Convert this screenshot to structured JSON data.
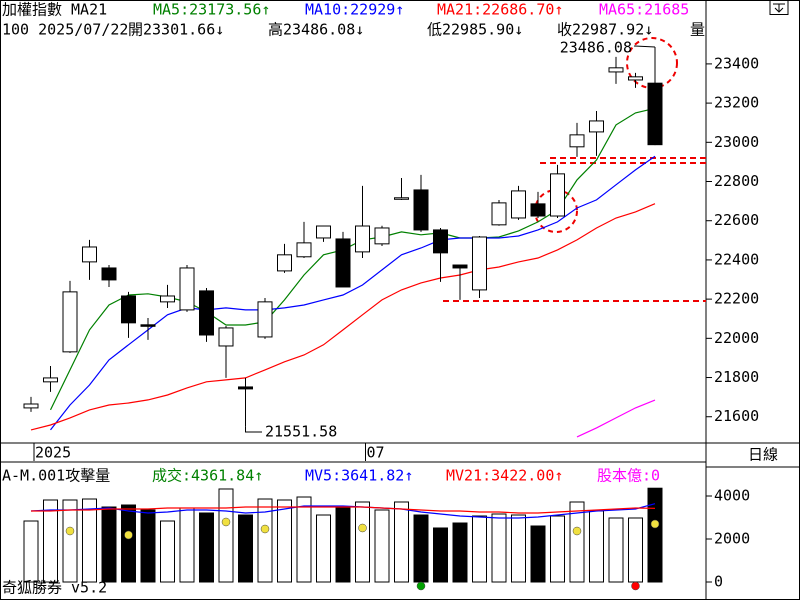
{
  "chart_data": [
    {
      "type": "candlestick",
      "header": [
        {
          "text": "加權指數 MA21",
          "color": "#000000"
        }
      ],
      "info": [
        "100 2025/07/22",
        "開23301.66↓",
        "高23486.08↓",
        "低22985.90↓",
        "收22987.92↓",
        "量"
      ],
      "period": "日線",
      "categories": [
        "2025",
        null,
        null,
        null,
        null,
        null,
        null,
        null,
        null,
        null,
        null,
        null,
        null,
        null,
        null,
        null,
        null,
        "07",
        null,
        null,
        null,
        null,
        null,
        null,
        null,
        null,
        null,
        null,
        null,
        null,
        null,
        null,
        null
      ],
      "open": [
        21645,
        21778,
        21931,
        22390,
        22359,
        22216,
        22069,
        22186,
        22145,
        22242,
        21961,
        21752,
        22007,
        22344,
        22416,
        22512,
        22507,
        22441,
        22482,
        22712,
        22757,
        22553,
        22374,
        22247,
        22579,
        22614,
        22686,
        22624,
        22977,
        23053,
        23359,
        23318,
        23301.66
      ],
      "high": [
        21701,
        21859,
        22293,
        22502,
        22374,
        22237,
        22104,
        22273,
        22374,
        22257,
        22063,
        21798,
        22206,
        22482,
        22594,
        22574,
        22543,
        22778,
        22574,
        22818,
        22834,
        22563,
        22369,
        22522,
        22706,
        22778,
        22747,
        22885,
        23099,
        23160,
        23436,
        23354,
        23486.08
      ],
      "low": [
        21625,
        21727,
        21926,
        22298,
        22262,
        22002,
        21992,
        22155,
        22135,
        21982,
        21798,
        21551.58,
        21997,
        22334,
        22410,
        22492,
        22262,
        22410,
        22471,
        22706,
        22543,
        22288,
        22196,
        22206,
        22574,
        22604,
        22614,
        22614,
        22926,
        22931,
        23298,
        23278,
        22985.9
      ],
      "close": [
        21665,
        21798,
        22237,
        22466,
        22298,
        22079,
        22064,
        22216,
        22359,
        22017,
        22053,
        21742,
        22186,
        22426,
        22487,
        22573,
        22262,
        22573,
        22563,
        22717,
        22553,
        22436,
        22359,
        22517,
        22691,
        22752,
        22624,
        22839,
        23038,
        23109,
        23380,
        23334,
        22987.92
      ],
      "up_color": "#ffffff",
      "down_color": "#000000",
      "series": [
        {
          "name": "MA5:23173.56↑",
          "color": "#008000",
          "values": [
            null,
            21635,
            21839,
            22043,
            22170,
            22221,
            22227,
            22211,
            22186,
            22135,
            22068,
            22068,
            22084,
            22196,
            22323,
            22426,
            22451,
            22502,
            22517,
            22543,
            22528,
            22538,
            22512,
            22512,
            22517,
            22548,
            22594,
            22655,
            22808,
            22910,
            23089,
            23150,
            23173.56
          ]
        },
        {
          "name": "MA10:22929↑",
          "color": "#0000ff",
          "values": [
            null,
            21533,
            21660,
            21762,
            21890,
            21967,
            22043,
            22120,
            22155,
            22145,
            22155,
            22145,
            22145,
            22155,
            22170,
            22196,
            22221,
            22272,
            22349,
            22426,
            22461,
            22502,
            22512,
            22512,
            22512,
            22522,
            22553,
            22594,
            22665,
            22706,
            22783,
            22859,
            22929
          ]
        },
        {
          "name": "MA21:22686.70↑",
          "color": "#ff0000",
          "values": [
            21533,
            21558,
            21594,
            21635,
            21660,
            21670,
            21686,
            21711,
            21747,
            21778,
            21788,
            21798,
            21839,
            21880,
            21915,
            21967,
            22043,
            22120,
            22196,
            22247,
            22283,
            22308,
            22323,
            22349,
            22364,
            22390,
            22410,
            22451,
            22502,
            22563,
            22614,
            22645,
            22686.7
          ]
        },
        {
          "name": "MA65:21685",
          "color": "#ff00ff",
          "values": [
            null,
            null,
            null,
            null,
            null,
            null,
            null,
            null,
            null,
            null,
            null,
            null,
            null,
            null,
            null,
            null,
            null,
            null,
            null,
            null,
            null,
            null,
            null,
            null,
            null,
            null,
            null,
            null,
            21497,
            21543,
            21594,
            21645,
            21685
          ]
        }
      ],
      "annotations": [
        {
          "text": "23486.08",
          "value": 23486.08
        },
        {
          "text": "21551.58",
          "value": 21551.58
        }
      ],
      "ylim": [
        21466,
        23726
      ],
      "yticks": [
        21600,
        21800,
        22000,
        22200,
        22400,
        22600,
        22800,
        23000,
        23200,
        23400
      ]
    },
    {
      "type": "bar",
      "header": [
        {
          "text": "A-M.001攻擊量",
          "color": "#000000"
        },
        {
          "text": "成交:4361.84↑",
          "color": "#008000"
        },
        {
          "text": "MV5:3641.82↑",
          "color": "#0000ff"
        },
        {
          "text": "MV21:3422.00↑",
          "color": "#ff0000"
        },
        {
          "text": "股本億:0",
          "color": "#ff00ff"
        }
      ],
      "values": [
        2837,
        3814,
        3814,
        3860,
        3488,
        3581,
        3349,
        2837,
        3442,
        3209,
        4326,
        3116,
        3860,
        3814,
        3953,
        3116,
        3442,
        3721,
        3349,
        3721,
        3116,
        2512,
        2744,
        3070,
        3163,
        3116,
        2605,
        3070,
        3721,
        3302,
        2977,
        2977,
        4361.84
      ],
      "series": [
        {
          "color": "#0000ff",
          "values": [
            3302,
            3349,
            3349,
            3395,
            3442,
            3302,
            3209,
            3256,
            3349,
            3349,
            3302,
            3209,
            3256,
            3395,
            3535,
            3535,
            3535,
            3488,
            3442,
            3395,
            3256,
            3163,
            3070,
            3023,
            2977,
            2977,
            3023,
            3116,
            3209,
            3302,
            3349,
            3395,
            3641.82
          ]
        },
        {
          "color": "#ff0000",
          "values": [
            3302,
            3302,
            3349,
            3349,
            3395,
            3395,
            3395,
            3442,
            3442,
            3442,
            3442,
            3488,
            3488,
            3488,
            3488,
            3488,
            3488,
            3488,
            3442,
            3395,
            3349,
            3302,
            3302,
            3256,
            3256,
            3209,
            3209,
            3256,
            3302,
            3349,
            3395,
            3442,
            3422.0
          ]
        }
      ],
      "dots": [
        {
          "color": "#f0e040",
          "values": [
            null,
            null,
            2372,
            null,
            null,
            2186,
            null,
            null,
            null,
            null,
            2791,
            null,
            2465,
            null,
            null,
            null,
            null,
            2512,
            null,
            null,
            null,
            null,
            null,
            null,
            null,
            null,
            null,
            null,
            2372,
            null,
            null,
            null,
            2698
          ]
        },
        {
          "color": "#00a000",
          "values": [
            null,
            null,
            null,
            null,
            null,
            null,
            null,
            null,
            null,
            null,
            null,
            null,
            null,
            null,
            null,
            null,
            null,
            null,
            null,
            null,
            -186,
            null,
            null,
            null,
            null,
            null,
            null,
            null,
            null,
            null,
            null,
            null,
            null
          ]
        },
        {
          "color": "#ff0000",
          "values": [
            null,
            null,
            null,
            null,
            null,
            null,
            null,
            null,
            null,
            null,
            null,
            null,
            null,
            null,
            null,
            null,
            null,
            null,
            null,
            null,
            null,
            null,
            null,
            null,
            null,
            null,
            null,
            null,
            null,
            null,
            null,
            -186,
            null
          ]
        }
      ],
      "ylim": [
        -744,
        4465
      ],
      "yticks": [
        0,
        2000,
        4000
      ]
    }
  ],
  "footer": "奇狐勝券 v5.2"
}
